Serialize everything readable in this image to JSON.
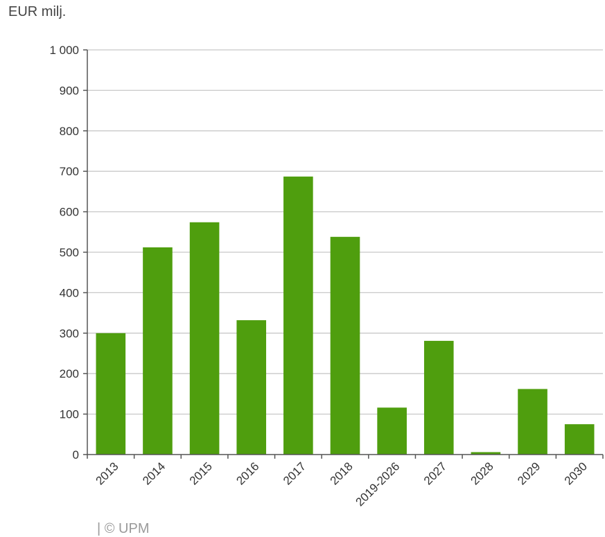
{
  "chart_data": {
    "type": "bar",
    "ylabel": "EUR milj.",
    "categories": [
      "2013",
      "2014",
      "2015",
      "2016",
      "2017",
      "2018",
      "2019-2026",
      "2027",
      "2028",
      "2029",
      "2030"
    ],
    "values": [
      300,
      512,
      574,
      332,
      687,
      538,
      116,
      281,
      6,
      162,
      75
    ],
    "ylim": [
      0,
      1000
    ],
    "yticks": [
      0,
      100,
      200,
      300,
      400,
      500,
      600,
      700,
      800,
      900,
      1000
    ],
    "ytick_labels": [
      "0",
      "100",
      "200",
      "300",
      "400",
      "500",
      "600",
      "700",
      "800",
      "900",
      "1 000"
    ],
    "grid": true,
    "bar_color": "#4f9e0e",
    "gridline_color": "#c8c8c8",
    "axis_color": "#555555"
  },
  "footer": {
    "source": "| © UPM"
  }
}
